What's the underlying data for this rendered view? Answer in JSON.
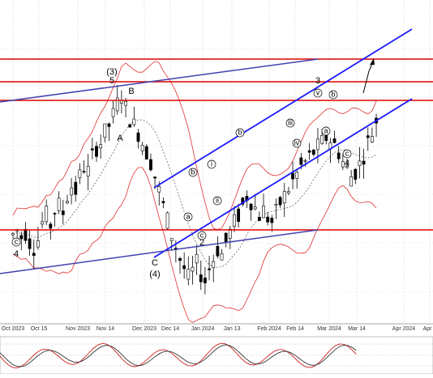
{
  "chart_data": {
    "type": "candlestick",
    "x_axis": {
      "tick_labels": [
        "Oct 2023",
        "Oct 15",
        "Nov 2023",
        "Nov 14",
        "Dec 2023",
        "Dec 14",
        "Jan 2024",
        "Jan 13",
        "Feb 2024",
        "Feb 14",
        "Mar 2024",
        "Mar 14",
        "Apr 2024",
        "Apr 1"
      ]
    },
    "grid": true,
    "series": [
      {
        "kind": "candles",
        "values": [
          50,
          52,
          49,
          51,
          47,
          45,
          48,
          55,
          58,
          54,
          60,
          62,
          59,
          66,
          70,
          68,
          74,
          78,
          76,
          82,
          86,
          88,
          92,
          95,
          99,
          104,
          108,
          102,
          98,
          95,
          92,
          88,
          84,
          80,
          74,
          68,
          62,
          56,
          50,
          45,
          40,
          36,
          32,
          35,
          38,
          34,
          31,
          36,
          40,
          44,
          42,
          47,
          51,
          55,
          58,
          62,
          66,
          64,
          61,
          58,
          60,
          57,
          55,
          59,
          63,
          66,
          69,
          72,
          75,
          78,
          80,
          82,
          84,
          86,
          88,
          90,
          89,
          87,
          84,
          80,
          77,
          74,
          76,
          79,
          83,
          88,
          92,
          97
        ]
      },
      {
        "kind": "bollinger_bands",
        "color": "#e03030"
      },
      {
        "kind": "moving_average",
        "style": "dashed",
        "color": "#555555"
      }
    ],
    "horizontal_levels": [
      {
        "color": "#dd0000"
      },
      {
        "color": "#dd0000"
      },
      {
        "color": "#dd0000"
      },
      {
        "color": "#dd0000"
      }
    ],
    "trend_lines": [
      {
        "color": "#1a1aff"
      },
      {
        "color": "#1a1aff"
      },
      {
        "color": "#4040b0"
      },
      {
        "color": "#4040b0"
      }
    ],
    "wave_labels": {
      "top": [
        "(3)",
        "5",
        "B",
        "A",
        "3",
        "4"
      ],
      "bottom": [
        "C",
        "(4)",
        "2",
        "4"
      ],
      "circled": [
        "c",
        "b",
        "i",
        "a",
        "ii",
        "c",
        "b",
        "iii",
        "iv",
        "a",
        "c",
        "v",
        "b"
      ]
    },
    "oscillator": {
      "type": "stochastic",
      "lines": [
        "#d02020",
        "#333333"
      ]
    }
  }
}
